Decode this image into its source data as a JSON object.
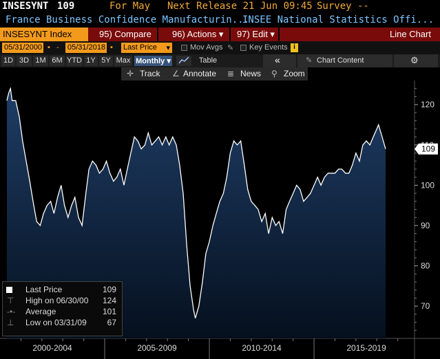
{
  "header": {
    "ticker": "INSESYNT",
    "value": "109",
    "for_label": "For May",
    "next_release": "Next Release 21 Jun 09:45",
    "survey": "Survey --",
    "description": "France Business Confidence Manufacturin...",
    "source": "INSEE National Statistics Offi..."
  },
  "toolbar": {
    "index_label": "INSESYNT Index",
    "compare": "95) Compare",
    "actions": "96) Actions ▾",
    "edit": "97) Edit ▾",
    "chart_type": "Line Chart"
  },
  "controls": {
    "start_date": "05/31/2000",
    "end_date": "05/31/2018",
    "field": "Last Price",
    "mov_avgs": "Mov Avgs",
    "key_events": "Key Events",
    "info_badge": "i"
  },
  "ranges": {
    "items": [
      "1D",
      "3D",
      "1M",
      "6M",
      "YTD",
      "1Y",
      "5Y",
      "Max"
    ],
    "period": "Monthly ▾",
    "table": "Table",
    "chart_content": "Chart Content",
    "collapse": "«",
    "gear": "⚙"
  },
  "tools": {
    "track": "Track",
    "annotate": "Annotate",
    "news": "News",
    "zoom": "Zoom"
  },
  "legend": {
    "last_price_label": "Last Price",
    "last_price_value": "109",
    "high_label": "High on 06/30/00",
    "high_value": "124",
    "average_label": "Average",
    "average_value": "101",
    "low_label": "Low on 03/31/09",
    "low_value": "67"
  },
  "chart_data": {
    "type": "area",
    "series": [
      {
        "values": [
          [
            2000.33,
            121
          ],
          [
            2000.42,
            123
          ],
          [
            2000.5,
            124
          ],
          [
            2000.58,
            121
          ],
          [
            2000.75,
            121
          ],
          [
            2000.92,
            117
          ],
          [
            2001.08,
            111
          ],
          [
            2001.25,
            106
          ],
          [
            2001.42,
            101
          ],
          [
            2001.58,
            96
          ],
          [
            2001.75,
            91
          ],
          [
            2001.92,
            90
          ],
          [
            2002.08,
            93
          ],
          [
            2002.25,
            95
          ],
          [
            2002.42,
            96
          ],
          [
            2002.58,
            93
          ],
          [
            2002.75,
            97
          ],
          [
            2002.92,
            100
          ],
          [
            2003.08,
            95
          ],
          [
            2003.25,
            92
          ],
          [
            2003.42,
            95
          ],
          [
            2003.58,
            97
          ],
          [
            2003.75,
            92
          ],
          [
            2003.92,
            90
          ],
          [
            2004.08,
            97
          ],
          [
            2004.25,
            104
          ],
          [
            2004.42,
            106
          ],
          [
            2004.58,
            105
          ],
          [
            2004.75,
            103
          ],
          [
            2004.92,
            104
          ],
          [
            2005.08,
            106
          ],
          [
            2005.25,
            103
          ],
          [
            2005.42,
            101
          ],
          [
            2005.58,
            102
          ],
          [
            2005.75,
            104
          ],
          [
            2005.92,
            100
          ],
          [
            2006.08,
            104
          ],
          [
            2006.25,
            108
          ],
          [
            2006.42,
            112
          ],
          [
            2006.58,
            111
          ],
          [
            2006.75,
            109
          ],
          [
            2006.92,
            110
          ],
          [
            2007.08,
            113
          ],
          [
            2007.25,
            110
          ],
          [
            2007.42,
            111
          ],
          [
            2007.58,
            112
          ],
          [
            2007.75,
            110
          ],
          [
            2007.92,
            112
          ],
          [
            2008.08,
            110
          ],
          [
            2008.25,
            112
          ],
          [
            2008.42,
            110
          ],
          [
            2008.58,
            105
          ],
          [
            2008.75,
            98
          ],
          [
            2008.92,
            85
          ],
          [
            2009.08,
            75
          ],
          [
            2009.25,
            69
          ],
          [
            2009.33,
            67
          ],
          [
            2009.5,
            70
          ],
          [
            2009.67,
            76
          ],
          [
            2009.83,
            83
          ],
          [
            2010.0,
            86
          ],
          [
            2010.17,
            90
          ],
          [
            2010.33,
            93
          ],
          [
            2010.5,
            96
          ],
          [
            2010.67,
            98
          ],
          [
            2010.83,
            102
          ],
          [
            2011.0,
            108
          ],
          [
            2011.17,
            111
          ],
          [
            2011.33,
            110
          ],
          [
            2011.5,
            111
          ],
          [
            2011.67,
            105
          ],
          [
            2011.83,
            99
          ],
          [
            2012.0,
            96
          ],
          [
            2012.17,
            95
          ],
          [
            2012.33,
            94
          ],
          [
            2012.5,
            91
          ],
          [
            2012.67,
            93
          ],
          [
            2012.83,
            88
          ],
          [
            2013.0,
            92
          ],
          [
            2013.17,
            90
          ],
          [
            2013.33,
            91
          ],
          [
            2013.5,
            88
          ],
          [
            2013.67,
            94
          ],
          [
            2013.83,
            96
          ],
          [
            2014.0,
            98
          ],
          [
            2014.17,
            100
          ],
          [
            2014.33,
            99
          ],
          [
            2014.5,
            96
          ],
          [
            2014.67,
            97
          ],
          [
            2014.83,
            98
          ],
          [
            2015.0,
            100
          ],
          [
            2015.17,
            102
          ],
          [
            2015.33,
            100
          ],
          [
            2015.5,
            102
          ],
          [
            2015.67,
            103
          ],
          [
            2015.83,
            103
          ],
          [
            2016.0,
            103
          ],
          [
            2016.17,
            104
          ],
          [
            2016.33,
            104
          ],
          [
            2016.5,
            103
          ],
          [
            2016.67,
            103
          ],
          [
            2016.83,
            105
          ],
          [
            2017.0,
            108
          ],
          [
            2017.17,
            106
          ],
          [
            2017.33,
            110
          ],
          [
            2017.5,
            111
          ],
          [
            2017.67,
            110
          ],
          [
            2017.83,
            112
          ],
          [
            2018.0,
            114
          ],
          [
            2018.08,
            115
          ],
          [
            2018.25,
            112
          ],
          [
            2018.42,
            109
          ]
        ]
      }
    ],
    "x_ticks": [
      "2000-2004",
      "2005-2009",
      "2010-2014",
      "2015-2019"
    ],
    "y_ticks": [
      70,
      80,
      90,
      100,
      110,
      120
    ],
    "ylim": [
      62,
      126
    ],
    "xlim": [
      2000.0,
      2019.8
    ],
    "last_value_label": "109",
    "colors": {
      "line": "#ffffff",
      "fill_top": "#1f3d66",
      "fill_bottom": "#05101e",
      "background": "#000000",
      "axis_text": "#dddddd"
    }
  }
}
